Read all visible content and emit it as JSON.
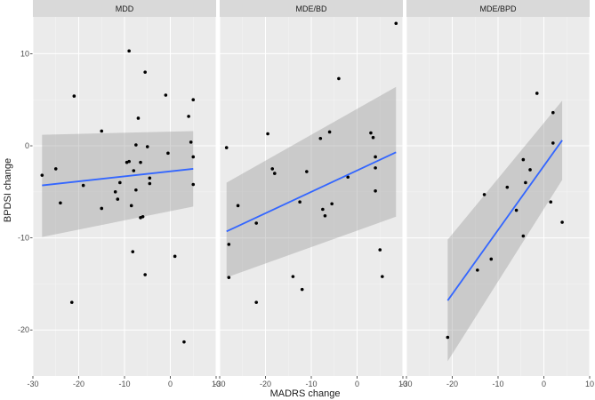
{
  "chart_data": {
    "type": "scatter",
    "facet": "columns",
    "xlabel": "MADRS change",
    "ylabel": "BPDSI change",
    "xlim": [
      -30,
      10
    ],
    "ylim": [
      -25,
      14
    ],
    "x_ticks": [
      -30,
      -20,
      -10,
      0,
      10
    ],
    "y_ticks": [
      -20,
      -10,
      0,
      10
    ],
    "grid": true,
    "point_color": "#000000",
    "line_color": "#3366ff",
    "band_color": "#999999",
    "panels": [
      {
        "name": "MDD",
        "points": [
          [
            -28,
            -3.2
          ],
          [
            -25,
            -2.5
          ],
          [
            -24,
            -6.2
          ],
          [
            -21.5,
            -17
          ],
          [
            -21,
            5.4
          ],
          [
            -19,
            -4.3
          ],
          [
            -15,
            1.6
          ],
          [
            -15,
            -6.8
          ],
          [
            -12,
            -5
          ],
          [
            -11.5,
            -5.8
          ],
          [
            -11,
            -4
          ],
          [
            -9.5,
            -1.8
          ],
          [
            -9,
            10.3
          ],
          [
            -9,
            -1.7
          ],
          [
            -8.5,
            -6.5
          ],
          [
            -8.2,
            -11.5
          ],
          [
            -8,
            -2.7
          ],
          [
            -7.5,
            0.1
          ],
          [
            -7.5,
            -4.8
          ],
          [
            -7,
            3
          ],
          [
            -6.5,
            -7.8
          ],
          [
            -6.5,
            -1.8
          ],
          [
            -6,
            -7.7
          ],
          [
            -5.5,
            -14
          ],
          [
            -5.5,
            8
          ],
          [
            -5,
            -0.1
          ],
          [
            -4.5,
            -3.5
          ],
          [
            -4.5,
            -4.1
          ],
          [
            -1,
            5.5
          ],
          [
            -0.5,
            -0.8
          ],
          [
            1,
            -12
          ],
          [
            3,
            -21.3
          ],
          [
            4,
            3.2
          ],
          [
            4.5,
            0.4
          ],
          [
            5,
            -1.2
          ],
          [
            5,
            -4.2
          ],
          [
            5,
            5
          ]
        ],
        "fit": {
          "x": [
            -28,
            5
          ],
          "y": [
            -4.3,
            -2.5
          ],
          "band_lower": [
            -9.9,
            -6.6
          ],
          "band_upper": [
            1.2,
            1.6
          ]
        }
      },
      {
        "name": "MDE/BD",
        "points": [
          [
            -28.5,
            -0.2
          ],
          [
            -28,
            -10.7
          ],
          [
            -28,
            -14.3
          ],
          [
            -26,
            -6.5
          ],
          [
            -22,
            -8.4
          ],
          [
            -22,
            -17
          ],
          [
            -19.5,
            1.3
          ],
          [
            -18.5,
            -2.5
          ],
          [
            -18,
            -3
          ],
          [
            -14,
            -14.2
          ],
          [
            -12.5,
            -6.1
          ],
          [
            -12,
            -15.6
          ],
          [
            -11,
            -2.8
          ],
          [
            -8,
            0.8
          ],
          [
            -7.5,
            -6.9
          ],
          [
            -7,
            -7.6
          ],
          [
            -6,
            1.5
          ],
          [
            -5.5,
            -6.3
          ],
          [
            -4,
            7.3
          ],
          [
            -2,
            -3.4
          ],
          [
            3,
            1.4
          ],
          [
            3.5,
            0.9
          ],
          [
            4,
            -1.2
          ],
          [
            4,
            -2.4
          ],
          [
            4,
            -4.9
          ],
          [
            5,
            -11.3
          ],
          [
            5.5,
            -14.2
          ],
          [
            8.5,
            13.3
          ]
        ],
        "fit": {
          "x": [
            -28.5,
            8.5
          ],
          "y": [
            -9.3,
            -0.7
          ],
          "band_lower": [
            -14.3,
            -7.7
          ],
          "band_upper": [
            -4,
            6.4
          ]
        }
      },
      {
        "name": "MDE/BPD",
        "points": [
          [
            -21,
            -20.8
          ],
          [
            -14.5,
            -13.5
          ],
          [
            -13,
            -5.3
          ],
          [
            -11.5,
            -12.3
          ],
          [
            -8,
            -4.5
          ],
          [
            -6,
            -7
          ],
          [
            -4.5,
            -1.5
          ],
          [
            -4.5,
            -9.8
          ],
          [
            -4,
            -4
          ],
          [
            -3,
            -2.6
          ],
          [
            -1.5,
            5.7
          ],
          [
            1.5,
            -6.1
          ],
          [
            2,
            3.6
          ],
          [
            2,
            0.3
          ],
          [
            4,
            -8.3
          ]
        ],
        "fit": {
          "x": [
            -21,
            4
          ],
          "y": [
            -16.8,
            0.6
          ],
          "band_lower": [
            -23.4,
            -3.7
          ],
          "band_upper": [
            -10.2,
            4.9
          ]
        }
      }
    ]
  }
}
